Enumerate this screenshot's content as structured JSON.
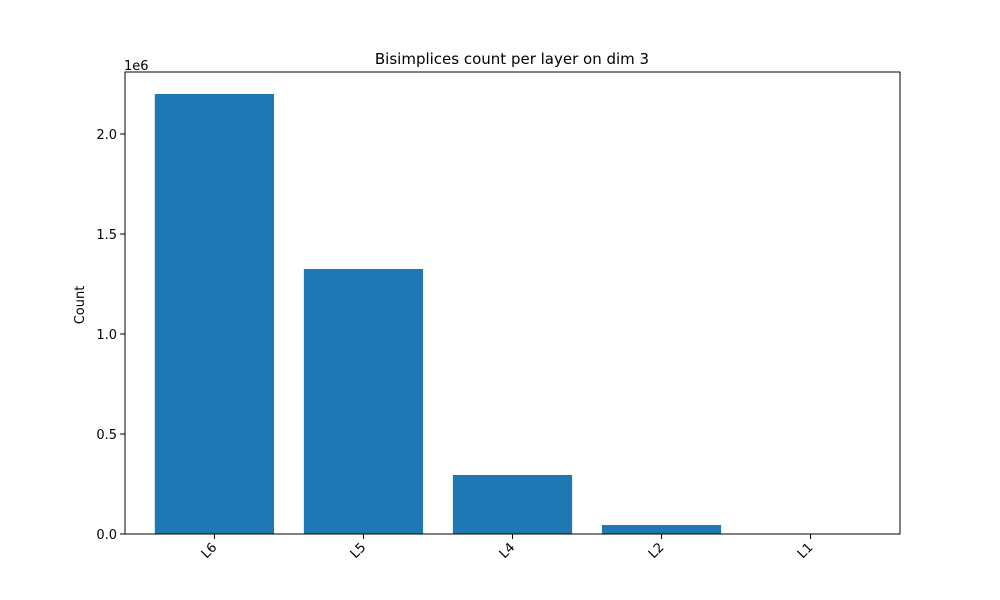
{
  "chart_data": {
    "type": "bar",
    "title": "Bisimplices count per layer on dim 3",
    "xlabel": "",
    "ylabel": "Count",
    "categories": [
      "L6",
      "L5",
      "L4",
      "L2",
      "L1"
    ],
    "values": [
      2200000,
      1325000,
      295000,
      45000,
      0
    ],
    "ylim": [
      0,
      2310000
    ],
    "yticks": [
      0,
      500000,
      1000000,
      1500000,
      2000000
    ],
    "ytick_labels": [
      "0.0",
      "0.5",
      "1.0",
      "1.5",
      "2.0"
    ],
    "y_offset_label": "1e6",
    "bar_color": "#1f77b4",
    "grid": false,
    "legend": "none"
  }
}
